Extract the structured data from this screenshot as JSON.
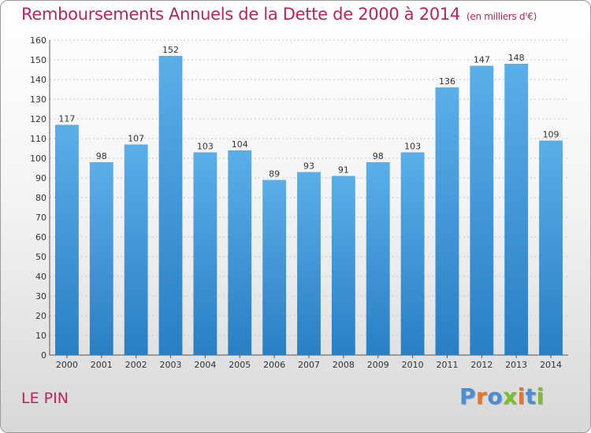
{
  "title": "Remboursements Annuels de la Dette de 2000 à 2014",
  "unit": "(en milliers d'€)",
  "commune": "LE PIN",
  "logo": {
    "letters": [
      "P",
      "r",
      "o",
      "x",
      "i",
      "t",
      "i"
    ]
  },
  "colors": {
    "title": "#b7245c",
    "bar_light": "#5aaee9",
    "bar_dark": "#2a7fc4",
    "logo": [
      "#4a8fd6",
      "#e8742a",
      "#4a8fd6",
      "#7cbf2e",
      "#e8742a",
      "#4a8fd6",
      "#7cbf2e"
    ]
  },
  "chart_data": {
    "type": "bar",
    "categories": [
      "2000",
      "2001",
      "2002",
      "2003",
      "2004",
      "2005",
      "2006",
      "2007",
      "2008",
      "2009",
      "2010",
      "2011",
      "2012",
      "2013",
      "2014"
    ],
    "values": [
      117,
      98,
      107,
      152,
      103,
      104,
      89,
      93,
      91,
      98,
      103,
      136,
      147,
      148,
      109
    ],
    "ylim": [
      0,
      160
    ],
    "yticks": [
      0,
      10,
      20,
      30,
      40,
      50,
      60,
      70,
      80,
      90,
      100,
      110,
      120,
      130,
      140,
      150,
      160
    ],
    "grid": true,
    "legend": "none"
  }
}
